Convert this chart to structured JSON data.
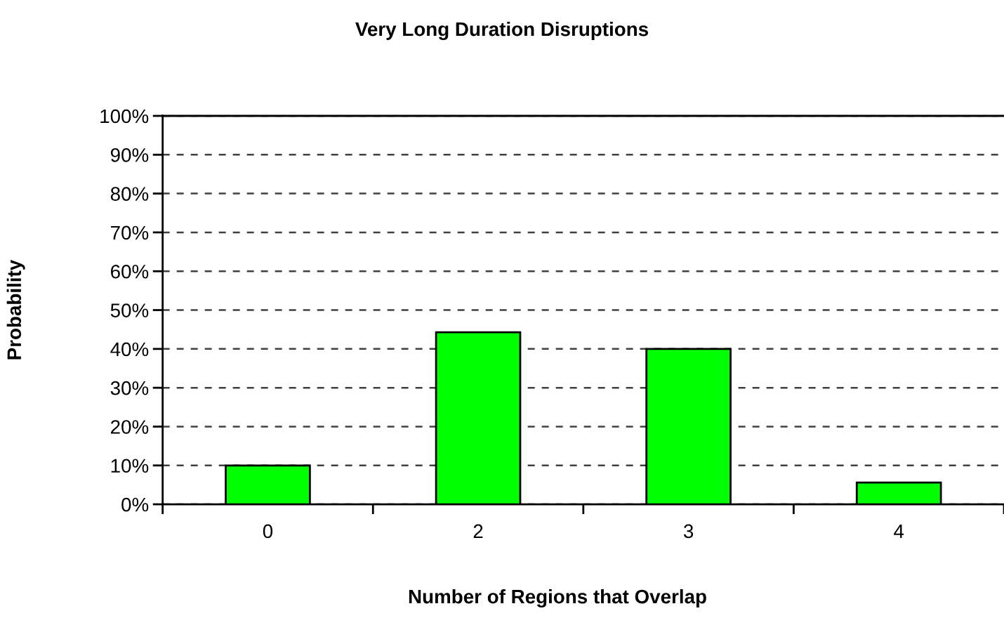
{
  "chart_data": {
    "type": "bar",
    "title": "Very Long Duration Disruptions",
    "xlabel": "Number of Regions that Overlap",
    "ylabel": "Probability",
    "categories": [
      "0",
      "2",
      "3",
      "4"
    ],
    "values": [
      10,
      44.3,
      40,
      5.6
    ],
    "color": "#00ff00",
    "ylim": [
      0,
      100
    ],
    "yticks": [
      {
        "value": 0,
        "label": "0%"
      },
      {
        "value": 10,
        "label": "10%"
      },
      {
        "value": 20,
        "label": "20%"
      },
      {
        "value": 30,
        "label": "30%"
      },
      {
        "value": 40,
        "label": "40%"
      },
      {
        "value": 50,
        "label": "50%"
      },
      {
        "value": 60,
        "label": "60%"
      },
      {
        "value": 70,
        "label": "70%"
      },
      {
        "value": 80,
        "label": "80%"
      },
      {
        "value": 90,
        "label": "90%"
      },
      {
        "value": 100,
        "label": "100%"
      }
    ],
    "grid": "y",
    "legend": false,
    "line_style": "dashed"
  }
}
